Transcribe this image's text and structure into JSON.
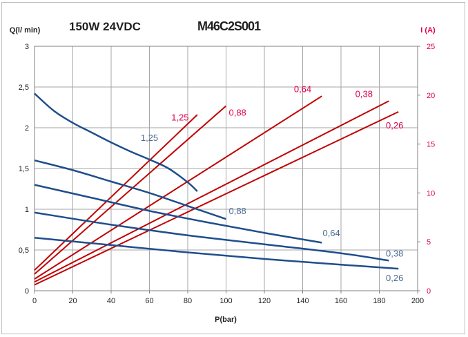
{
  "chart_data": {
    "type": "line",
    "title": "150W 24VDC",
    "subtitle": "M46C2S001",
    "xlabel": "P(bar)",
    "ylabel": "Q(l/ min)",
    "y2label": "I (A)",
    "xlim": [
      0,
      200
    ],
    "ylim": [
      0,
      3
    ],
    "y2lim": [
      0,
      25
    ],
    "xticks": [
      "0",
      "20",
      "40",
      "60",
      "80",
      "100",
      "120",
      "140",
      "160",
      "180",
      "200"
    ],
    "yticks": [
      "0",
      "0,5",
      "1",
      "1,5",
      "2",
      "2,5",
      "3"
    ],
    "y2ticks": [
      "0",
      "5",
      "10",
      "15",
      "20",
      "25"
    ],
    "grid": true,
    "flow_color": "#1f4e8c",
    "current_color": "#c00000",
    "flow_series": [
      {
        "name": "1,25",
        "points": [
          [
            0,
            2.42
          ],
          [
            10,
            2.21
          ],
          [
            20,
            2.06
          ],
          [
            30,
            1.94
          ],
          [
            40,
            1.82
          ],
          [
            50,
            1.71
          ],
          [
            60,
            1.61
          ],
          [
            70,
            1.5
          ],
          [
            80,
            1.33
          ],
          [
            85,
            1.22
          ]
        ]
      },
      {
        "name": "0,88",
        "points": [
          [
            0,
            1.6
          ],
          [
            20,
            1.48
          ],
          [
            40,
            1.34
          ],
          [
            60,
            1.2
          ],
          [
            80,
            1.04
          ],
          [
            100,
            0.88
          ]
        ]
      },
      {
        "name": "0,64",
        "points": [
          [
            0,
            1.3
          ],
          [
            30,
            1.14
          ],
          [
            60,
            0.98
          ],
          [
            90,
            0.84
          ],
          [
            120,
            0.71
          ],
          [
            150,
            0.59
          ]
        ]
      },
      {
        "name": "0,38",
        "points": [
          [
            0,
            0.96
          ],
          [
            40,
            0.81
          ],
          [
            80,
            0.68
          ],
          [
            120,
            0.57
          ],
          [
            160,
            0.46
          ],
          [
            185,
            0.37
          ]
        ]
      },
      {
        "name": "0,26",
        "points": [
          [
            0,
            0.65
          ],
          [
            40,
            0.56
          ],
          [
            80,
            0.47
          ],
          [
            120,
            0.39
          ],
          [
            160,
            0.32
          ],
          [
            190,
            0.27
          ]
        ]
      }
    ],
    "current_series": [
      {
        "name": "1,25",
        "points": [
          [
            0,
            2.1
          ],
          [
            85,
            18.0
          ]
        ]
      },
      {
        "name": "0,88",
        "points": [
          [
            0,
            1.7
          ],
          [
            100,
            18.9
          ]
        ]
      },
      {
        "name": "0,64",
        "points": [
          [
            0,
            1.2
          ],
          [
            150,
            19.9
          ]
        ]
      },
      {
        "name": "0,38",
        "points": [
          [
            0,
            0.9
          ],
          [
            185,
            19.4
          ]
        ]
      },
      {
        "name": "0,26",
        "points": [
          [
            0,
            0.6
          ],
          [
            190,
            18.3
          ]
        ]
      }
    ],
    "flow_labels": [
      {
        "text": "1,25",
        "x": 60,
        "y": 1.84
      },
      {
        "text": "0,88",
        "x": 106,
        "y": 0.94
      },
      {
        "text": "0,64",
        "x": 155,
        "y": 0.67
      },
      {
        "text": "0,38",
        "x": 188,
        "y": 0.42
      },
      {
        "text": "0,26",
        "x": 188,
        "y": 0.12
      }
    ],
    "current_labels": [
      {
        "text": "1,25",
        "x": 76,
        "y": 17.4
      },
      {
        "text": "0,88",
        "x": 106,
        "y": 17.9
      },
      {
        "text": "0,64",
        "x": 140,
        "y": 20.3
      },
      {
        "text": "0,38",
        "x": 172,
        "y": 19.8
      },
      {
        "text": "0,26",
        "x": 188,
        "y": 16.6
      }
    ]
  }
}
